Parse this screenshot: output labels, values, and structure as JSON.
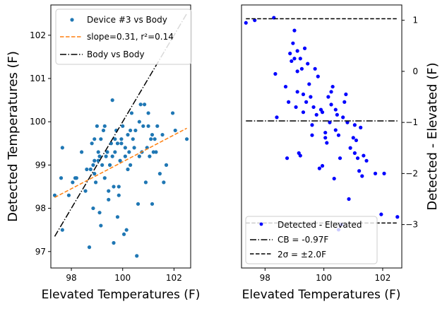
{
  "chart_data": [
    {
      "type": "scatter",
      "xlabel": "Elevated Temperatures (F)",
      "ylabel": "Detected Temperatures (F)",
      "xlim": [
        97.2,
        102.65
      ],
      "ylim": [
        96.62,
        102.7
      ],
      "xticks": [
        98,
        100,
        102
      ],
      "yticks": [
        97,
        98,
        99,
        100,
        101,
        102
      ],
      "legend_position": "top-left",
      "series": [
        {
          "name": "Device #3 vs Body",
          "kind": "points",
          "color": "#1f77b4",
          "points": [
            [
              97.35,
              98.3
            ],
            [
              97.6,
              98.7
            ],
            [
              97.65,
              97.5
            ],
            [
              97.65,
              99.4
            ],
            [
              97.9,
              98.3
            ],
            [
              98.05,
              98.6
            ],
            [
              98.15,
              98.7
            ],
            [
              98.2,
              98.7
            ],
            [
              98.4,
              99.3
            ],
            [
              98.55,
              98.4
            ],
            [
              98.6,
              98.9
            ],
            [
              98.7,
              97.1
            ],
            [
              98.75,
              98.9
            ],
            [
              98.8,
              99.5
            ],
            [
              98.85,
              98.0
            ],
            [
              98.85,
              99.0
            ],
            [
              98.9,
              98.8
            ],
            [
              98.9,
              99.1
            ],
            [
              98.9,
              99.6
            ],
            [
              98.95,
              98.6
            ],
            [
              99.0,
              99.9
            ],
            [
              99.05,
              99.1
            ],
            [
              99.05,
              99.3
            ],
            [
              99.1,
              97.9
            ],
            [
              99.1,
              99.2
            ],
            [
              99.15,
              97.6
            ],
            [
              99.15,
              99.6
            ],
            [
              99.2,
              99.0
            ],
            [
              99.25,
              99.8
            ],
            [
              99.3,
              98.7
            ],
            [
              99.3,
              99.9
            ],
            [
              99.35,
              99.2
            ],
            [
              99.4,
              99.3
            ],
            [
              99.45,
              98.2
            ],
            [
              99.45,
              98.4
            ],
            [
              99.5,
              99.0
            ],
            [
              99.55,
              99.5
            ],
            [
              99.6,
              99.2
            ],
            [
              99.6,
              100.5
            ],
            [
              99.65,
              97.2
            ],
            [
              99.65,
              98.5
            ],
            [
              99.7,
              99.3
            ],
            [
              99.7,
              99.6
            ],
            [
              99.75,
              99.8
            ],
            [
              99.8,
              97.8
            ],
            [
              99.8,
              99.5
            ],
            [
              99.85,
              98.3
            ],
            [
              99.85,
              98.5
            ],
            [
              99.9,
              99.1
            ],
            [
              99.95,
              99.5
            ],
            [
              99.95,
              99.6
            ],
            [
              100.0,
              99.9
            ],
            [
              100.05,
              97.4
            ],
            [
              100.1,
              99.2
            ],
            [
              100.1,
              99.4
            ],
            [
              100.15,
              97.5
            ],
            [
              100.2,
              98.9
            ],
            [
              100.2,
              99.7
            ],
            [
              100.25,
              99.3
            ],
            [
              100.3,
              99.0
            ],
            [
              100.3,
              99.8
            ],
            [
              100.35,
              100.2
            ],
            [
              100.4,
              99.6
            ],
            [
              100.45,
              99.4
            ],
            [
              100.5,
              99.8
            ],
            [
              100.55,
              96.9
            ],
            [
              100.6,
              98.1
            ],
            [
              100.65,
              99.2
            ],
            [
              100.65,
              100.0
            ],
            [
              100.7,
              100.4
            ],
            [
              100.75,
              99.3
            ],
            [
              100.8,
              99.9
            ],
            [
              100.85,
              100.4
            ],
            [
              100.9,
              98.6
            ],
            [
              100.95,
              99.4
            ],
            [
              101.0,
              99.9
            ],
            [
              101.0,
              100.2
            ],
            [
              101.05,
              99.2
            ],
            [
              101.1,
              99.6
            ],
            [
              101.15,
              98.1
            ],
            [
              101.15,
              99.7
            ],
            [
              101.2,
              99.3
            ],
            [
              101.25,
              99.6
            ],
            [
              101.3,
              99.3
            ],
            [
              101.35,
              99.9
            ],
            [
              101.45,
              98.8
            ],
            [
              101.55,
              99.7
            ],
            [
              101.6,
              98.6
            ],
            [
              101.7,
              99.0
            ],
            [
              101.95,
              100.2
            ],
            [
              102.05,
              99.8
            ],
            [
              102.5,
              99.6
            ]
          ]
        },
        {
          "name": "slope=0.31, r²=0.14",
          "kind": "line",
          "style": "dashed",
          "color": "#ff7f0e",
          "points": [
            [
              97.35,
              98.25
            ],
            [
              102.5,
              99.85
            ]
          ]
        },
        {
          "name": "Body vs Body",
          "kind": "line",
          "style": "dashdot",
          "color": "#000000",
          "points": [
            [
              97.35,
              97.35
            ],
            [
              102.5,
              102.5
            ]
          ]
        }
      ]
    },
    {
      "type": "scatter",
      "xlabel": "Elevated Temperatures (F)",
      "ylabel": "Detected - Elevated (F)",
      "xlim": [
        97.2,
        102.65
      ],
      "ylim": [
        -3.85,
        1.3
      ],
      "xticks": [
        98,
        100,
        102
      ],
      "yticks": [
        1,
        0,
        -1,
        -2,
        -3
      ],
      "y_axis_side": "right",
      "legend_position": "bottom-left",
      "series": [
        {
          "name": "Detected - Elevated",
          "kind": "points",
          "color": "#0000ff",
          "points": [
            [
              97.35,
              0.95
            ],
            [
              97.65,
              1.0
            ],
            [
              98.3,
              1.05
            ],
            [
              98.35,
              -0.05
            ],
            [
              98.4,
              -0.9
            ],
            [
              98.7,
              -0.3
            ],
            [
              98.75,
              -1.7
            ],
            [
              98.8,
              -0.6
            ],
            [
              98.85,
              0.35
            ],
            [
              98.9,
              0.2
            ],
            [
              98.95,
              0.55
            ],
            [
              99.0,
              0.25
            ],
            [
              99.0,
              0.8
            ],
            [
              99.05,
              -0.7
            ],
            [
              99.1,
              -0.4
            ],
            [
              99.1,
              0.0
            ],
            [
              99.1,
              0.4
            ],
            [
              99.15,
              -1.6
            ],
            [
              99.2,
              0.25
            ],
            [
              99.2,
              -1.65
            ],
            [
              99.25,
              0.05
            ],
            [
              99.3,
              -0.45
            ],
            [
              99.3,
              -0.8
            ],
            [
              99.35,
              0.45
            ],
            [
              99.4,
              -0.6
            ],
            [
              99.45,
              0.15
            ],
            [
              99.5,
              -0.25
            ],
            [
              99.55,
              -0.5
            ],
            [
              99.6,
              -1.05
            ],
            [
              99.6,
              -1.25
            ],
            [
              99.65,
              -0.7
            ],
            [
              99.7,
              0.05
            ],
            [
              99.75,
              -0.85
            ],
            [
              99.8,
              -0.1
            ],
            [
              99.85,
              -1.9
            ],
            [
              99.9,
              -0.75
            ],
            [
              99.95,
              -0.8
            ],
            [
              99.95,
              -1.85
            ],
            [
              100.05,
              -1.2
            ],
            [
              100.05,
              -1.3
            ],
            [
              100.1,
              -1.4
            ],
            [
              100.15,
              -0.5
            ],
            [
              100.2,
              -1.0
            ],
            [
              100.25,
              -0.65
            ],
            [
              100.25,
              -0.4
            ],
            [
              100.3,
              -0.3
            ],
            [
              100.35,
              -2.1
            ],
            [
              100.4,
              -0.75
            ],
            [
              100.4,
              -1.15
            ],
            [
              100.45,
              -0.85
            ],
            [
              100.5,
              -1.25
            ],
            [
              100.5,
              -3.1
            ],
            [
              100.55,
              -1.7
            ],
            [
              100.6,
              -3.0
            ],
            [
              100.65,
              -0.9
            ],
            [
              100.7,
              -0.6
            ],
            [
              100.75,
              -0.45
            ],
            [
              100.8,
              -1.0
            ],
            [
              100.85,
              -2.5
            ],
            [
              100.9,
              -1.5
            ],
            [
              101.0,
              -1.3
            ],
            [
              101.05,
              -1.05
            ],
            [
              101.05,
              -1.6
            ],
            [
              101.1,
              -1.35
            ],
            [
              101.15,
              -1.7
            ],
            [
              101.2,
              -1.95
            ],
            [
              101.25,
              -1.1
            ],
            [
              101.3,
              -2.05
            ],
            [
              101.35,
              -1.65
            ],
            [
              101.45,
              -1.75
            ],
            [
              101.75,
              -2.0
            ],
            [
              101.95,
              -2.8
            ],
            [
              102.05,
              -2.0
            ],
            [
              102.5,
              -2.85
            ]
          ]
        },
        {
          "name": "CB = -0.97F",
          "kind": "hline",
          "style": "dashdot",
          "color": "#000000",
          "y": -0.97,
          "x_range": [
            97.35,
            102.5
          ]
        },
        {
          "name": "2σ = ±2.0F",
          "kind": "hline_pair",
          "style": "dashed",
          "color": "#000000",
          "y": [
            1.03,
            -2.97
          ],
          "x_range": [
            97.35,
            102.5
          ]
        }
      ]
    }
  ]
}
